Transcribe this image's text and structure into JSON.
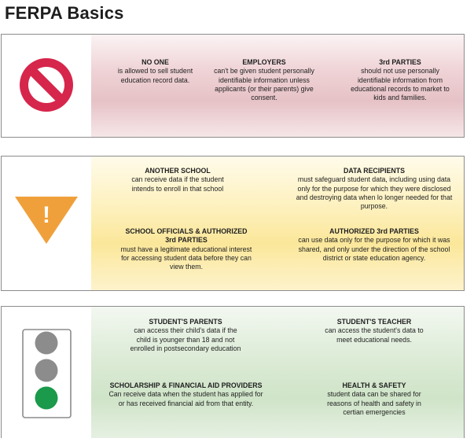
{
  "page": {
    "title": "FERPA Basics"
  },
  "colors": {
    "stop_red": "#d6264b",
    "caution_orange": "#f0a03a",
    "light_gray": "#8c8c8c",
    "light_green": "#1a9a4a",
    "panel_red": "#e6c2c6",
    "panel_yellow": "#fbe79a",
    "panel_green": "#cfe4c8"
  },
  "panels": {
    "red": {
      "icon": "no-entry-icon",
      "items": [
        {
          "heading": "NO ONE",
          "body": "is allowed to sell student education record data."
        },
        {
          "heading": "EMPLOYERS",
          "body": "can't be given student personally identifiable information unless applicants (or their parents) give consent."
        },
        {
          "heading": "3rd PARTIES",
          "body": "should not use personally identifiable information from educational records to market to kids and families."
        }
      ]
    },
    "yellow": {
      "icon": "caution-triangle-icon",
      "icon_glyph": "!",
      "items": [
        {
          "heading": "ANOTHER SCHOOL",
          "body": "can receive data if the student intends to enroll in that school"
        },
        {
          "heading": "DATA RECIPIENTS",
          "body": "must safeguard student data, including using data only for the purpose for which they were disclosed and destroying data when lo longer needed for that purpose."
        },
        {
          "heading": "SCHOOL OFFICIALS & AUTHORIZED 3rd PARTIES",
          "body": "must have a legitimate educational interest for accessing student data before they can view them."
        },
        {
          "heading": "AUTHORIZED 3rd PARTIES",
          "body": "can use data only for the purpose for which it was shared, and only under the direction of the school district or state education agency."
        }
      ]
    },
    "green": {
      "icon": "traffic-light-icon",
      "items": [
        {
          "heading": "STUDENT'S PARENTS",
          "body": "can access their child's data if the child is younger than 18 and not enrolled in postsecondary education"
        },
        {
          "heading": "STUDENT'S TEACHER",
          "body": "can access the student's data to meet educational needs."
        },
        {
          "heading": "SCHOLARSHIP & FINANCIAL AID PROVIDERS",
          "body": "Can receive data when the student has applied for or has received financial aid from that entity."
        },
        {
          "heading": "HEALTH & SAFETY",
          "body": "student data can be shared for reasons of health and safety in certian emergencies"
        }
      ]
    }
  }
}
